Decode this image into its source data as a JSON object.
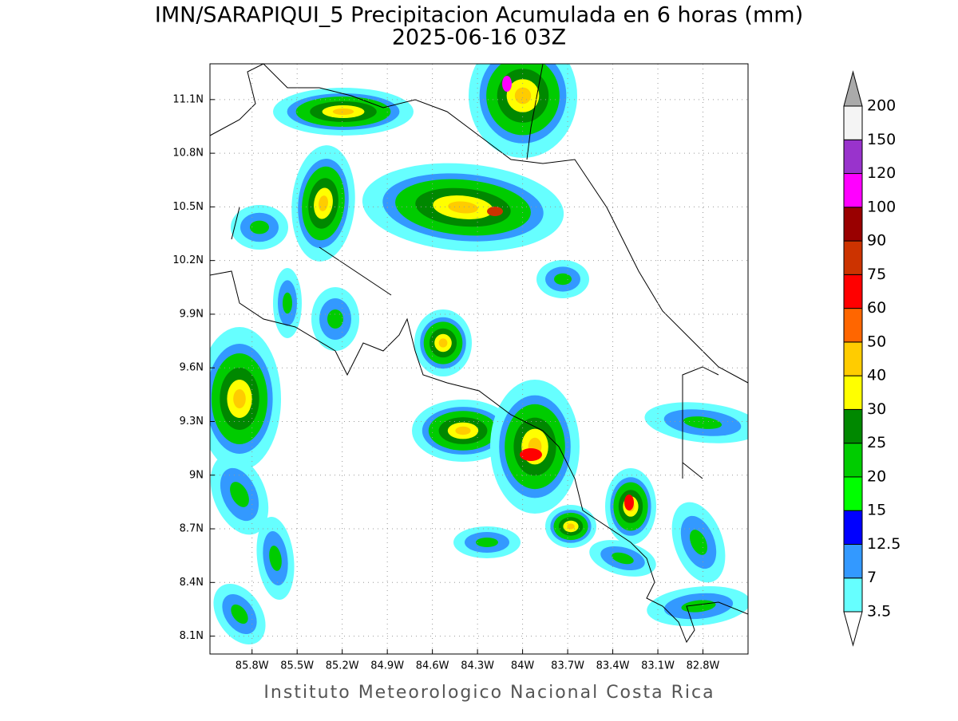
{
  "map": {
    "title": "IMN/SARAPIQUI_5 Precipitacion Acumulada en 6 horas (mm)",
    "subtitle": "2025-06-16 03Z",
    "footer": "Instituto Meteorologico Nacional Costa Rica",
    "lon_range": [
      -86.08,
      -82.5
    ],
    "lat_range": [
      8.0,
      11.3
    ],
    "lon_ticks": [
      {
        "value": -85.8,
        "label": "85.8W"
      },
      {
        "value": -85.5,
        "label": "85.5W"
      },
      {
        "value": -85.2,
        "label": "85.2W"
      },
      {
        "value": -84.9,
        "label": "84.9W"
      },
      {
        "value": -84.6,
        "label": "84.6W"
      },
      {
        "value": -84.3,
        "label": "84.3W"
      },
      {
        "value": -84.0,
        "label": "84W"
      },
      {
        "value": -83.7,
        "label": "83.7W"
      },
      {
        "value": -83.4,
        "label": "83.4W"
      },
      {
        "value": -83.1,
        "label": "83.1W"
      },
      {
        "value": -82.8,
        "label": "82.8W"
      }
    ],
    "lat_ticks": [
      {
        "value": 8.1,
        "label": "8.1N"
      },
      {
        "value": 8.4,
        "label": "8.4N"
      },
      {
        "value": 8.7,
        "label": "8.7N"
      },
      {
        "value": 9.0,
        "label": "9N"
      },
      {
        "value": 9.3,
        "label": "9.3N"
      },
      {
        "value": 9.6,
        "label": "9.6N"
      },
      {
        "value": 9.9,
        "label": "9.9N"
      },
      {
        "value": 10.2,
        "label": "10.2N"
      },
      {
        "value": 10.5,
        "label": "10.5N"
      },
      {
        "value": 10.8,
        "label": "10.8N"
      },
      {
        "value": 11.1,
        "label": "11.1N"
      }
    ],
    "grid": true,
    "colorbar": {
      "levels": [
        3.5,
        7,
        12.5,
        15,
        20,
        25,
        30,
        40,
        50,
        60,
        75,
        90,
        100,
        120,
        150,
        200
      ],
      "colors": [
        "#66ffff",
        "#3399ff",
        "#0000ff",
        "#00ff00",
        "#00cc00",
        "#008800",
        "#ffff00",
        "#ffcc00",
        "#ff6600",
        "#ff0000",
        "#cc3300",
        "#990000",
        "#ff00ff",
        "#9933cc",
        "#f4f4f4"
      ],
      "under_color": "#ffffff",
      "over_color": "#aaaaaa"
    }
  }
}
